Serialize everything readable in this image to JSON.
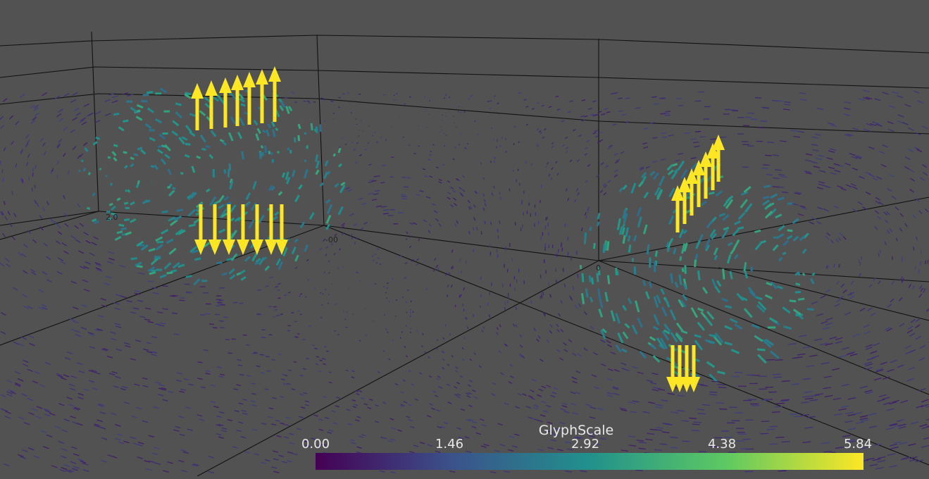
{
  "legend": {
    "title": "GlyphScale",
    "ticks": [
      "0.00",
      "1.46",
      "2.92",
      "4.38",
      "5.84"
    ],
    "range": [
      0.0,
      5.84
    ],
    "colormap": [
      "#440154",
      "#3b528b",
      "#21918c",
      "#5ec962",
      "#fde725"
    ]
  },
  "axes_labels": {
    "label_a": "2.0",
    "label_b": "-00",
    "label_c": "0"
  },
  "scene": {
    "background": "#525252",
    "glyph_type": "arrow-vector-field",
    "max_color": "#fde725",
    "low_color": "#3e4a89"
  }
}
